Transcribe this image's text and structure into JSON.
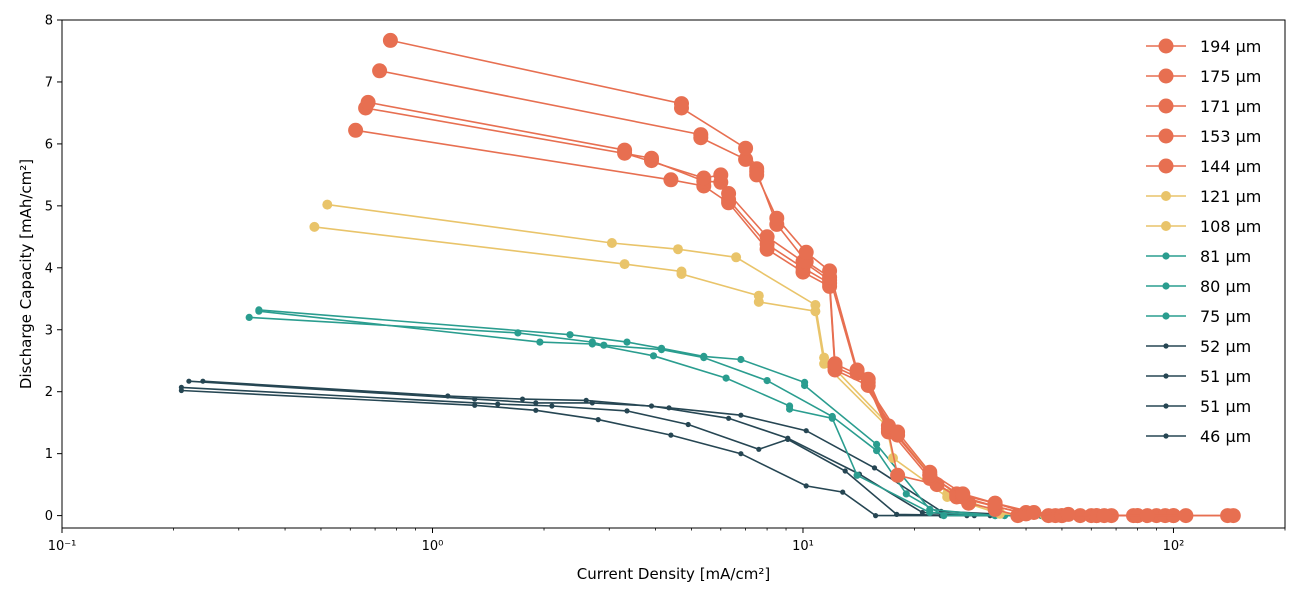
{
  "chart_data": {
    "type": "line",
    "xscale": "log",
    "xlim": [
      0.1,
      200
    ],
    "ylim": [
      -0.2,
      8
    ],
    "xlabel": "Current Density [mA/cm²]",
    "ylabel": "Discharge Capacity [mAh/cm²]",
    "xticks": [
      {
        "value": 0.1,
        "label": "10⁻¹"
      },
      {
        "value": 1,
        "label": "10⁰"
      },
      {
        "value": 10,
        "label": "10¹"
      },
      {
        "value": 100,
        "label": "10²"
      }
    ],
    "yticks": [
      0,
      1,
      2,
      3,
      4,
      5,
      6,
      7,
      8
    ],
    "grid": false,
    "legend_position": "top-right",
    "colors": {
      "orange": "#e76f51",
      "yellow": "#e9c46a",
      "teal": "#2a9d8f",
      "navy": "#264653"
    },
    "series": [
      {
        "name": "194 μm",
        "color": "#e76f51",
        "marker": "large",
        "points": [
          [
            0.77,
            7.67
          ],
          [
            4.7,
            6.65
          ],
          [
            4.7,
            6.58
          ],
          [
            7.0,
            5.93
          ],
          [
            7.5,
            5.6
          ],
          [
            7.5,
            5.5
          ],
          [
            8.5,
            4.8
          ],
          [
            10.2,
            4.25
          ],
          [
            11.8,
            3.95
          ],
          [
            14.0,
            2.35
          ],
          [
            18.0,
            1.35
          ],
          [
            22.0,
            0.7
          ],
          [
            27.0,
            0.35
          ],
          [
            33.0,
            0.2
          ],
          [
            42.0,
            0.05
          ],
          [
            52.0,
            0.02
          ],
          [
            65.0,
            0.0
          ],
          [
            85.0,
            0.0
          ],
          [
            108.0,
            0.0
          ],
          [
            145.0,
            0.0
          ]
        ]
      },
      {
        "name": "175 μm",
        "color": "#e76f51",
        "marker": "large",
        "points": [
          [
            0.72,
            7.18
          ],
          [
            5.3,
            6.15
          ],
          [
            5.3,
            6.1
          ],
          [
            7.0,
            5.75
          ],
          [
            7.5,
            5.55
          ],
          [
            8.5,
            4.7
          ],
          [
            10.2,
            4.1
          ],
          [
            11.8,
            3.85
          ],
          [
            14.0,
            2.3
          ],
          [
            18.0,
            1.3
          ],
          [
            22.0,
            0.65
          ],
          [
            27.0,
            0.3
          ],
          [
            33.0,
            0.15
          ],
          [
            40.0,
            0.03
          ],
          [
            50.0,
            0.0
          ],
          [
            62.0,
            0.0
          ],
          [
            80.0,
            0.0
          ],
          [
            100.0,
            0.0
          ],
          [
            140.0,
            0.0
          ]
        ]
      },
      {
        "name": "171 μm",
        "color": "#e76f51",
        "marker": "large",
        "points": [
          [
            0.67,
            6.67
          ],
          [
            3.3,
            5.9
          ],
          [
            3.3,
            5.85
          ],
          [
            5.4,
            5.45
          ],
          [
            6.0,
            5.5
          ],
          [
            6.3,
            5.2
          ],
          [
            8.0,
            4.5
          ],
          [
            10.0,
            4.1
          ],
          [
            11.8,
            3.8
          ],
          [
            12.2,
            2.45
          ],
          [
            15.0,
            2.2
          ],
          [
            17.0,
            1.45
          ],
          [
            22.0,
            0.65
          ],
          [
            26.0,
            0.35
          ],
          [
            33.0,
            0.2
          ],
          [
            40.0,
            0.05
          ],
          [
            50.0,
            0.0
          ],
          [
            62.0,
            0.0
          ],
          [
            80.0,
            0.0
          ],
          [
            100.0,
            0.0
          ]
        ]
      },
      {
        "name": "153 μm",
        "color": "#e76f51",
        "marker": "large",
        "points": [
          [
            0.66,
            6.58
          ],
          [
            3.9,
            5.77
          ],
          [
            3.9,
            5.73
          ],
          [
            5.4,
            5.4
          ],
          [
            6.0,
            5.38
          ],
          [
            6.3,
            5.1
          ],
          [
            8.0,
            4.38
          ],
          [
            10.0,
            4.0
          ],
          [
            11.8,
            3.75
          ],
          [
            12.2,
            2.4
          ],
          [
            15.0,
            2.15
          ],
          [
            17.0,
            1.4
          ],
          [
            22.0,
            0.6
          ],
          [
            26.0,
            0.3
          ],
          [
            33.0,
            0.15
          ],
          [
            40.0,
            0.03
          ],
          [
            48.0,
            0.0
          ],
          [
            60.0,
            0.0
          ],
          [
            78.0,
            0.0
          ],
          [
            95.0,
            0.0
          ]
        ]
      },
      {
        "name": "144 μm",
        "color": "#e76f51",
        "marker": "large",
        "points": [
          [
            0.62,
            6.22
          ],
          [
            4.4,
            5.42
          ],
          [
            5.4,
            5.32
          ],
          [
            6.3,
            5.05
          ],
          [
            8.0,
            4.3
          ],
          [
            10.0,
            3.93
          ],
          [
            11.8,
            3.7
          ],
          [
            12.2,
            2.35
          ],
          [
            15.0,
            2.1
          ],
          [
            17.0,
            1.35
          ],
          [
            18.0,
            0.65
          ],
          [
            23.0,
            0.5
          ],
          [
            28.0,
            0.2
          ],
          [
            33.0,
            0.1
          ],
          [
            38.0,
            0.0
          ],
          [
            46.0,
            0.0
          ],
          [
            56.0,
            0.0
          ],
          [
            68.0,
            0.0
          ],
          [
            90.0,
            0.0
          ]
        ]
      },
      {
        "name": "121 μm",
        "color": "#e9c46a",
        "marker": "medium",
        "points": [
          [
            0.52,
            5.02
          ],
          [
            3.05,
            4.4
          ],
          [
            4.6,
            4.3
          ],
          [
            6.6,
            4.17
          ],
          [
            10.8,
            3.4
          ],
          [
            11.4,
            2.55
          ],
          [
            16.8,
            1.5
          ],
          [
            24.5,
            0.35
          ],
          [
            34.0,
            0.05
          ],
          [
            45.0,
            0.0
          ],
          [
            64.0,
            0.0
          ],
          [
            92.0,
            0.0
          ]
        ]
      },
      {
        "name": "108 μm",
        "color": "#e9c46a",
        "marker": "medium",
        "points": [
          [
            0.48,
            4.66
          ],
          [
            3.3,
            4.06
          ],
          [
            4.7,
            3.94
          ],
          [
            4.7,
            3.9
          ],
          [
            7.6,
            3.55
          ],
          [
            7.6,
            3.45
          ],
          [
            10.8,
            3.3
          ],
          [
            11.4,
            2.45
          ],
          [
            16.8,
            1.45
          ],
          [
            17.5,
            0.93
          ],
          [
            24.5,
            0.3
          ],
          [
            34.0,
            0.03
          ],
          [
            45.0,
            0.0
          ],
          [
            62.0,
            0.0
          ],
          [
            90.0,
            0.0
          ]
        ]
      },
      {
        "name": "81 μm",
        "color": "#2a9d8f",
        "marker": "small",
        "points": [
          [
            0.34,
            3.32
          ],
          [
            2.35,
            2.92
          ],
          [
            3.35,
            2.8
          ],
          [
            4.15,
            2.7
          ],
          [
            5.4,
            2.57
          ],
          [
            6.8,
            2.52
          ],
          [
            10.1,
            2.15
          ],
          [
            10.1,
            2.1
          ],
          [
            15.8,
            1.15
          ],
          [
            22.0,
            0.1
          ],
          [
            33.0,
            0.0
          ],
          [
            44.0,
            0.0
          ],
          [
            65.0,
            0.0
          ]
        ]
      },
      {
        "name": "80 μm",
        "color": "#2a9d8f",
        "marker": "small",
        "points": [
          [
            0.32,
            3.2
          ],
          [
            1.7,
            2.95
          ],
          [
            2.7,
            2.8
          ],
          [
            2.9,
            2.75
          ],
          [
            4.15,
            2.68
          ],
          [
            5.4,
            2.55
          ],
          [
            8.0,
            2.18
          ],
          [
            12.0,
            1.6
          ],
          [
            15.8,
            1.05
          ],
          [
            19.0,
            0.35
          ],
          [
            24.0,
            0.0
          ],
          [
            35.0,
            0.0
          ],
          [
            55.0,
            0.0
          ]
        ]
      },
      {
        "name": "75 μm",
        "color": "#2a9d8f",
        "marker": "small",
        "points": [
          [
            0.34,
            3.3
          ],
          [
            1.95,
            2.8
          ],
          [
            2.7,
            2.77
          ],
          [
            3.95,
            2.58
          ],
          [
            6.2,
            2.22
          ],
          [
            9.2,
            1.77
          ],
          [
            9.2,
            1.72
          ],
          [
            12.0,
            1.57
          ],
          [
            14.0,
            0.65
          ],
          [
            22.0,
            0.05
          ],
          [
            33.0,
            0.0
          ],
          [
            48.0,
            0.0
          ]
        ]
      },
      {
        "name": "52 μm",
        "color": "#264653",
        "marker": "tiny",
        "points": [
          [
            0.24,
            2.17
          ],
          [
            1.1,
            1.93
          ],
          [
            1.75,
            1.88
          ],
          [
            2.6,
            1.86
          ],
          [
            4.35,
            1.74
          ],
          [
            6.8,
            1.62
          ],
          [
            10.2,
            1.37
          ],
          [
            15.6,
            0.77
          ],
          [
            23.6,
            0.07
          ],
          [
            35.0,
            0.02
          ],
          [
            42.0,
            0.0
          ]
        ]
      },
      {
        "name": "51 μm",
        "color": "#264653",
        "marker": "tiny",
        "points": [
          [
            0.22,
            2.17
          ],
          [
            1.3,
            1.88
          ],
          [
            1.9,
            1.82
          ],
          [
            2.7,
            1.82
          ],
          [
            3.9,
            1.77
          ],
          [
            6.3,
            1.57
          ],
          [
            9.1,
            1.25
          ],
          [
            14.2,
            0.67
          ],
          [
            21.0,
            0.05
          ],
          [
            32.0,
            0.0
          ],
          [
            40.0,
            0.0
          ]
        ]
      },
      {
        "name": "51 μm",
        "color": "#264653",
        "marker": "tiny",
        "points": [
          [
            0.21,
            2.07
          ],
          [
            1.5,
            1.8
          ],
          [
            2.1,
            1.77
          ],
          [
            3.35,
            1.69
          ],
          [
            4.9,
            1.47
          ],
          [
            7.6,
            1.07
          ],
          [
            9.1,
            1.23
          ],
          [
            13.0,
            0.72
          ],
          [
            17.9,
            0.02
          ],
          [
            29.0,
            0.0
          ],
          [
            38.0,
            0.0
          ]
        ]
      },
      {
        "name": "46 μm",
        "color": "#264653",
        "marker": "tiny",
        "points": [
          [
            0.21,
            2.02
          ],
          [
            1.3,
            1.78
          ],
          [
            1.9,
            1.7
          ],
          [
            2.8,
            1.55
          ],
          [
            4.4,
            1.3
          ],
          [
            6.8,
            1.0
          ],
          [
            10.2,
            0.48
          ],
          [
            12.8,
            0.38
          ],
          [
            15.7,
            0.0
          ],
          [
            23.6,
            0.0
          ],
          [
            27.7,
            0.0
          ],
          [
            35.0,
            0.0
          ]
        ]
      }
    ]
  }
}
